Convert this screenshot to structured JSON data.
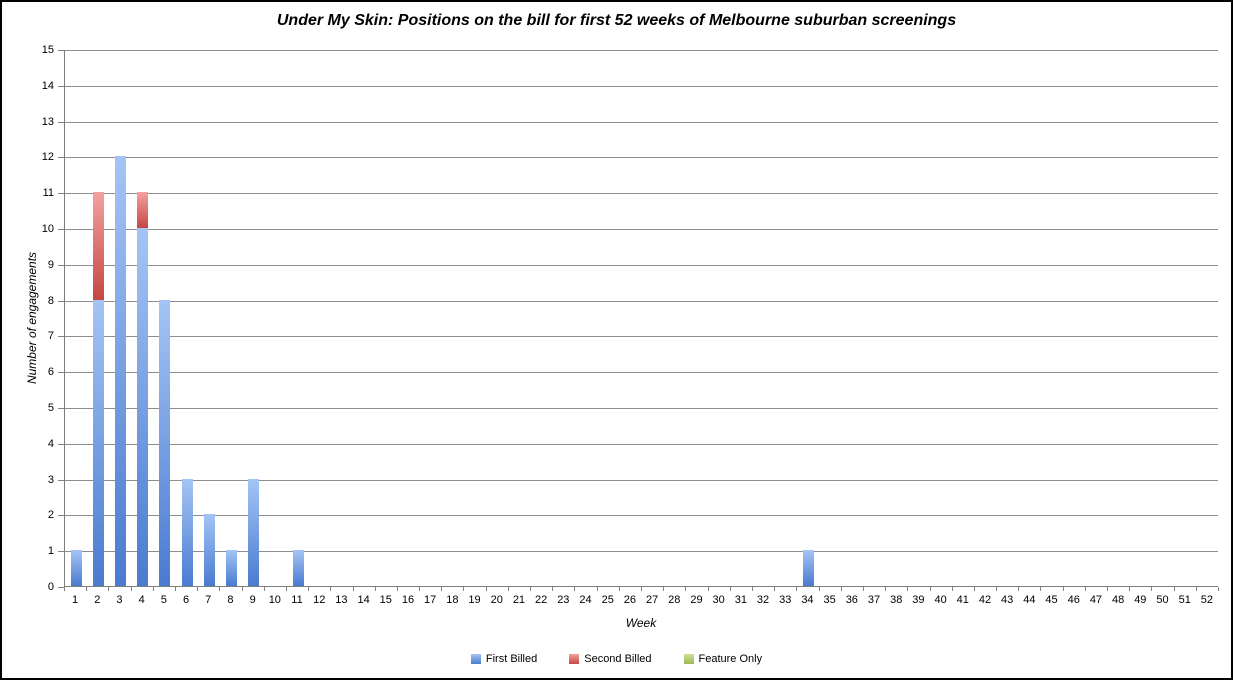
{
  "chart_data": {
    "type": "bar",
    "stacked": true,
    "title": "Under My Skin: Positions on the bill for first 52 weeks of Melbourne suburban screenings",
    "xlabel": "Week",
    "ylabel": "Number of engagements",
    "ylim": [
      0,
      15
    ],
    "ytick_step": 1,
    "grid": true,
    "legend_position": "bottom",
    "categories": [
      1,
      2,
      3,
      4,
      5,
      6,
      7,
      8,
      9,
      10,
      11,
      12,
      13,
      14,
      15,
      16,
      17,
      18,
      19,
      20,
      21,
      22,
      23,
      24,
      25,
      26,
      27,
      28,
      29,
      30,
      31,
      32,
      33,
      34,
      35,
      36,
      37,
      38,
      39,
      40,
      41,
      42,
      43,
      44,
      45,
      46,
      47,
      48,
      49,
      50,
      51,
      52
    ],
    "series": [
      {
        "name": "First Billed",
        "color_top": "#a4c4f5",
        "color_bottom": "#4a7bd0",
        "values": [
          1,
          8,
          12,
          10,
          8,
          3,
          2,
          1,
          3,
          0,
          1,
          0,
          0,
          0,
          0,
          0,
          0,
          0,
          0,
          0,
          0,
          0,
          0,
          0,
          0,
          0,
          0,
          0,
          0,
          0,
          0,
          0,
          0,
          1,
          0,
          0,
          0,
          0,
          0,
          0,
          0,
          0,
          0,
          0,
          0,
          0,
          0,
          0,
          0,
          0,
          0,
          0
        ]
      },
      {
        "name": "Second Billed",
        "color_top": "#f3a2a0",
        "color_bottom": "#c44742",
        "values": [
          0,
          3,
          0,
          1,
          0,
          0,
          0,
          0,
          0,
          0,
          0,
          0,
          0,
          0,
          0,
          0,
          0,
          0,
          0,
          0,
          0,
          0,
          0,
          0,
          0,
          0,
          0,
          0,
          0,
          0,
          0,
          0,
          0,
          0,
          0,
          0,
          0,
          0,
          0,
          0,
          0,
          0,
          0,
          0,
          0,
          0,
          0,
          0,
          0,
          0,
          0,
          0
        ]
      },
      {
        "name": "Feature Only",
        "color_top": "#d0e09a",
        "color_bottom": "#9aba52",
        "values": [
          0,
          0,
          0,
          0,
          0,
          0,
          0,
          0,
          0,
          0,
          0,
          0,
          0,
          0,
          0,
          0,
          0,
          0,
          0,
          0,
          0,
          0,
          0,
          0,
          0,
          0,
          0,
          0,
          0,
          0,
          0,
          0,
          0,
          0,
          0,
          0,
          0,
          0,
          0,
          0,
          0,
          0,
          0,
          0,
          0,
          0,
          0,
          0,
          0,
          0,
          0,
          0
        ]
      }
    ],
    "colors": {
      "gridline": "#8e8e8e",
      "axis": "#7f7f7f"
    }
  }
}
